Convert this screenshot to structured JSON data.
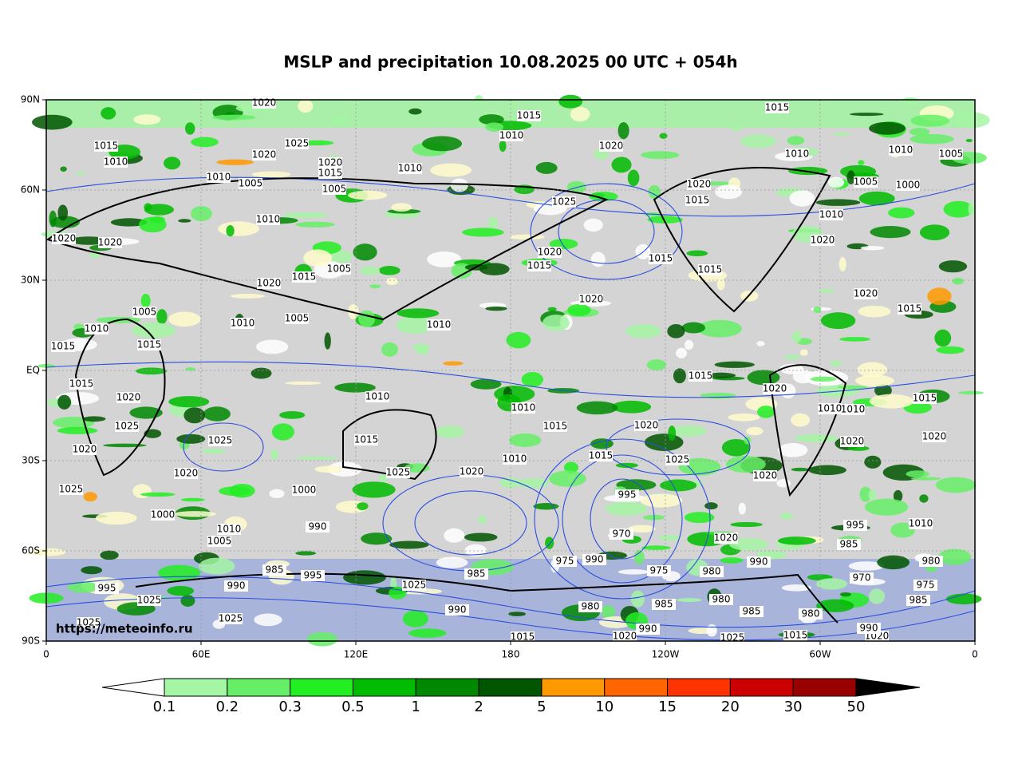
{
  "title": "MSLP and precipitation 10.08.2025 00 UTC + 054h",
  "lat_labels": [
    "90N",
    "60N",
    "30N",
    "EQ",
    "30S",
    "60S",
    "90S"
  ],
  "lon_labels": [
    "0",
    "60E",
    "120E",
    "180",
    "120W",
    "60W",
    "0"
  ],
  "watermark": "https://meteoinfo.ru",
  "colorbar": {
    "bounds": [
      "0.1",
      "0.2",
      "0.3",
      "0.5",
      "1",
      "2",
      "5",
      "10",
      "15",
      "20",
      "30",
      "50"
    ],
    "colors": [
      "#a4f5a4",
      "#66ee66",
      "#22ee22",
      "#00bb00",
      "#008800",
      "#005500",
      "#ff9900",
      "#ff6600",
      "#ff3300",
      "#cc0000",
      "#990000"
    ]
  },
  "isobar_labels": [
    1020,
    1015,
    1015,
    1015,
    1010,
    1020,
    1025,
    1020,
    1015,
    1010,
    1020,
    1010,
    1010,
    1005,
    1010,
    1005,
    1005,
    1010,
    1025,
    1020,
    1015,
    1005,
    1000,
    1010,
    1010,
    1020,
    1020,
    1020,
    1020,
    1015,
    1015,
    1015,
    1005,
    1015,
    1020,
    1020,
    1020,
    1015,
    1005,
    1010,
    1010,
    1005,
    1010,
    1015,
    1015,
    1015,
    1015,
    1020,
    1020,
    1015,
    1010,
    1010,
    1015,
    1020,
    1010,
    1025,
    1025,
    1015,
    1020,
    1020,
    1020,
    1010,
    1015,
    1025,
    1020,
    1025,
    1020,
    1025,
    1020,
    1000,
    995,
    1000,
    990,
    1010,
    1005,
    970,
    1020,
    995,
    1010,
    985,
    975,
    990,
    990,
    980,
    985,
    995,
    975,
    980,
    970,
    995,
    1025,
    990,
    1025,
    985,
    980,
    985,
    985,
    980,
    1025,
    1025,
    1020,
    990,
    1020,
    990,
    1025,
    1015,
    1015,
    990,
    980,
    975,
    985,
    1010
  ]
}
